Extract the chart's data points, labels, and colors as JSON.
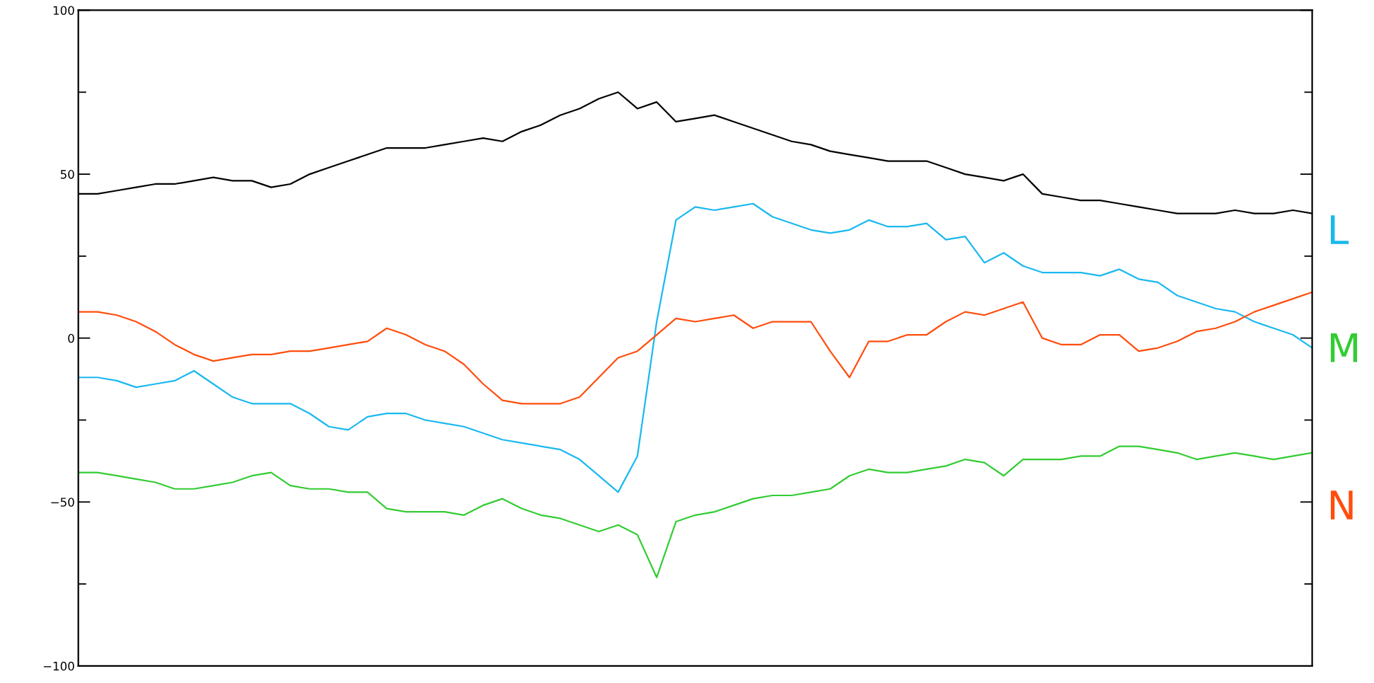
{
  "chart_data": {
    "type": "line",
    "categories": [
      null,
      null,
      null,
      null,
      null,
      null,
      null,
      null,
      null,
      null,
      null,
      null,
      null,
      null,
      null,
      null,
      null,
      null,
      null,
      null,
      null,
      null,
      null,
      null,
      null,
      null,
      null,
      null,
      null,
      null,
      null,
      null,
      null,
      null,
      null,
      null,
      null,
      null,
      null,
      null,
      null,
      null,
      null,
      null,
      null,
      null,
      null,
      null,
      null,
      null,
      null,
      null,
      null,
      null,
      null,
      null,
      null,
      null,
      null,
      null,
      null,
      null,
      null,
      null,
      null
    ],
    "ylim": [
      -100,
      100
    ],
    "yticks": [
      {
        "value": -100,
        "label": "−100"
      },
      {
        "value": -75,
        "label": null
      },
      {
        "value": -50,
        "label": "−50"
      },
      {
        "value": -25,
        "label": null
      },
      0,
      {
        "value": 25,
        "label": null
      },
      50,
      {
        "value": 75,
        "label": null
      },
      100
    ],
    "tick_labels": "y",
    "grid": false,
    "legend": false,
    "line_style": "solid",
    "marker": "none",
    "series": [
      {
        "color": "#000000",
        "values": [
          44,
          44,
          45,
          46,
          47,
          47,
          48,
          49,
          48,
          48,
          46,
          47,
          50,
          52,
          54,
          56,
          58,
          58,
          58,
          59,
          60,
          61,
          60,
          63,
          65,
          68,
          70,
          73,
          75,
          70,
          72,
          66,
          67,
          68,
          66,
          64,
          62,
          60,
          59,
          57,
          56,
          55,
          54,
          54,
          54,
          52,
          50,
          49,
          48,
          50,
          44,
          43,
          42,
          42,
          41,
          40,
          39,
          38,
          38,
          38,
          39,
          38,
          38,
          39,
          38
        ]
      },
      {
        "name": "L",
        "color": "#1ab8f0",
        "values": [
          -12,
          -12,
          -13,
          -15,
          -14,
          -13,
          -10,
          -14,
          -18,
          -20,
          -20,
          -20,
          -23,
          -27,
          -28,
          -24,
          -23,
          -23,
          -25,
          -26,
          -27,
          -29,
          -31,
          -32,
          -33,
          -34,
          -37,
          -42,
          -47,
          -36,
          5,
          36,
          40,
          39,
          40,
          41,
          37,
          35,
          33,
          32,
          33,
          36,
          34,
          34,
          35,
          30,
          31,
          23,
          26,
          22,
          20,
          20,
          20,
          19,
          21,
          18,
          17,
          13,
          11,
          9,
          8,
          5,
          3,
          1,
          -3
        ]
      },
      {
        "name": "M",
        "color": "#33cc33",
        "values": [
          -41,
          -41,
          -42,
          -43,
          -44,
          -46,
          -46,
          -45,
          -44,
          -42,
          -41,
          -45,
          -46,
          -46,
          -47,
          -47,
          -52,
          -53,
          -53,
          -53,
          -54,
          -51,
          -49,
          -52,
          -54,
          -55,
          -57,
          -59,
          -57,
          -60,
          -73,
          -56,
          -54,
          -53,
          -51,
          -49,
          -48,
          -48,
          -47,
          -46,
          -42,
          -40,
          -41,
          -41,
          -40,
          -39,
          -37,
          -38,
          -42,
          -37,
          -37,
          -37,
          -36,
          -36,
          -33,
          -33,
          -34,
          -35,
          -37,
          -36,
          -35,
          -36,
          -37,
          -36,
          -35
        ]
      },
      {
        "name": "N",
        "color": "#ff4d0d",
        "values": [
          8,
          8,
          7,
          5,
          2,
          -2,
          -5,
          -7,
          -6,
          -5,
          -5,
          -4,
          -4,
          -3,
          -2,
          -1,
          3,
          1,
          -2,
          -4,
          -8,
          -14,
          -19,
          -20,
          -20,
          -20,
          -18,
          -12,
          -6,
          -4,
          1,
          6,
          5,
          6,
          7,
          3,
          5,
          5,
          5,
          -4,
          -12,
          -1,
          -1,
          1,
          1,
          5,
          8,
          7,
          9,
          11,
          0,
          -2,
          -2,
          1,
          1,
          -4,
          -3,
          -1,
          2,
          3,
          5,
          8,
          10,
          12,
          14
        ]
      }
    ]
  }
}
